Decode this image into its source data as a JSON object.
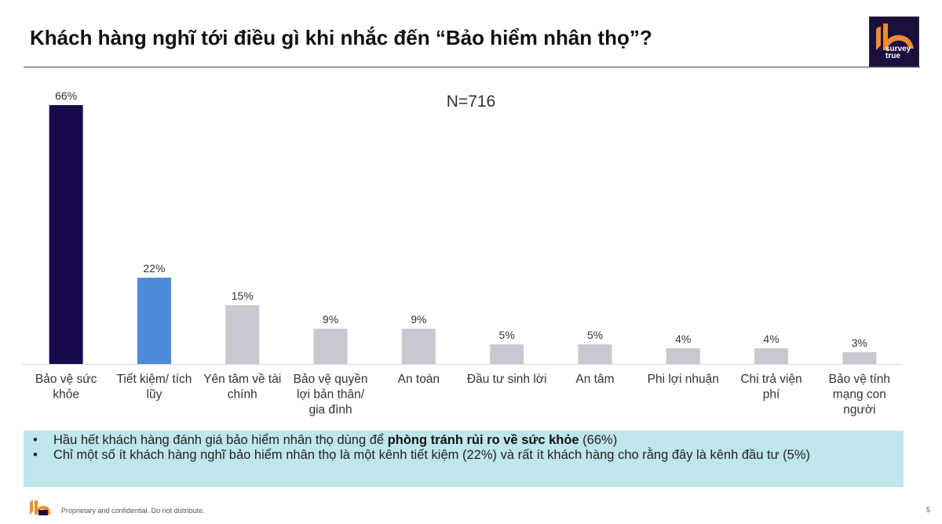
{
  "header": {
    "title": "Khách hàng nghĩ tới điều gì khi nhắc đến “Bảo hiểm nhân thọ”?",
    "logo_text_line1": "survey",
    "logo_text_line2": "true"
  },
  "sample": {
    "label": "N=716"
  },
  "colors": {
    "highlight_primary": "#180a4a",
    "highlight_secondary": "#4d8ada",
    "other_bars": "#c9c7cf",
    "summary_bg": "#bfe6ea",
    "logo_orange": "#f08a2c"
  },
  "chart_data": {
    "type": "bar",
    "categories": [
      [
        "Bảo vệ sức",
        "khỏe"
      ],
      [
        "Tiết kiệm/ tích",
        "lũy"
      ],
      [
        "Yên tâm về tài",
        "chính"
      ],
      [
        "Bảo vệ quyền",
        "lợi bản thân/",
        "gia đình"
      ],
      [
        "An toàn"
      ],
      [
        "Đầu tư sinh lời"
      ],
      [
        "An tâm"
      ],
      [
        "Phi lợi nhuận"
      ],
      [
        "Chi trả viện",
        "phí"
      ],
      [
        "Bảo vệ tính",
        "mạng con",
        "người"
      ]
    ],
    "values": [
      66,
      22,
      15,
      9,
      9,
      5,
      5,
      4,
      4,
      3
    ],
    "data_labels": [
      "66%",
      "22%",
      "15%",
      "9%",
      "9%",
      "5%",
      "5%",
      "4%",
      "4%",
      "3%"
    ],
    "bar_colors": [
      "#180a4a",
      "#4d8ada",
      "#c9c7cf",
      "#c9c7cf",
      "#c9c7cf",
      "#c9c7cf",
      "#c9c7cf",
      "#c9c7cf",
      "#c9c7cf",
      "#c9c7cf"
    ],
    "ylim": [
      0,
      66
    ],
    "grid": false,
    "legend": "none"
  },
  "summary": {
    "bullet_symbol": "•",
    "b1_pre": "Hầu hết khách hàng đánh giá bảo hiểm nhân thọ dùng để ",
    "b1_bold": "phòng tránh rủi ro về sức khỏe",
    "b1_post": " (66%)",
    "b2": "Chỉ một số ít khách hàng nghĩ bảo hiểm nhân thọ là một kênh tiết kiệm (22%) và rất ít khách hàng cho rằng đây là kênh đầu tư (5%)"
  },
  "footer": {
    "text": "Proprietary and confidential. Do not distribute.",
    "page": "5"
  }
}
